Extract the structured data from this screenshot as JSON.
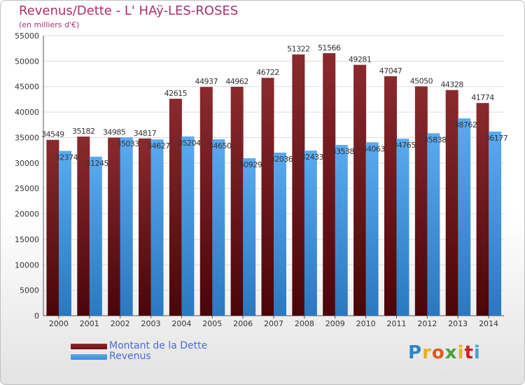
{
  "title": "Revenus/Dette - L' HAÿ-LES-ROSES",
  "subtitle": "(en milliers d'€)",
  "legend": {
    "debt_label": "Montant de la Dette",
    "revenue_label": "Revenus"
  },
  "logo": {
    "letters": [
      "P",
      "r",
      "o",
      "x",
      "i",
      "t",
      "i"
    ],
    "colors": [
      "#2e84c6",
      "#e8b020",
      "#e05a20",
      "#4aa03a",
      "#e8b020",
      "#d02020",
      "#4aa0d8"
    ]
  },
  "colors": {
    "debt": "#6b1114",
    "debt_light": "#8a2a2e",
    "revenue": "#3d8fd6",
    "revenue_light": "#5aaaf0",
    "axis_text": "#333333",
    "grid": "#dddddd"
  },
  "chart_data": {
    "type": "bar",
    "title": "Revenus/Dette - L' HAÿ-LES-ROSES",
    "ylabel": "(en milliers d'€)",
    "xlabel": "",
    "categories": [
      "2000",
      "2001",
      "2002",
      "2003",
      "2004",
      "2005",
      "2006",
      "2007",
      "2008",
      "2009",
      "2010",
      "2011",
      "2012",
      "2013",
      "2014"
    ],
    "series": [
      {
        "name": "Montant de la Dette",
        "values": [
          34549,
          35182,
          34985,
          34817,
          42615,
          44937,
          44962,
          46722,
          51322,
          51566,
          49281,
          47047,
          45050,
          44328,
          41774
        ]
      },
      {
        "name": "Revenus",
        "values": [
          32374,
          31245,
          35033,
          34627,
          35204,
          34650,
          30929,
          32036,
          32433,
          33538,
          34063,
          34765,
          35838,
          38762,
          36177
        ]
      }
    ],
    "ylim": [
      0,
      55000
    ],
    "yticks": [
      0,
      5000,
      10000,
      15000,
      20000,
      25000,
      30000,
      35000,
      40000,
      45000,
      50000,
      55000
    ],
    "grid": true,
    "legend_position": "bottom-left"
  }
}
